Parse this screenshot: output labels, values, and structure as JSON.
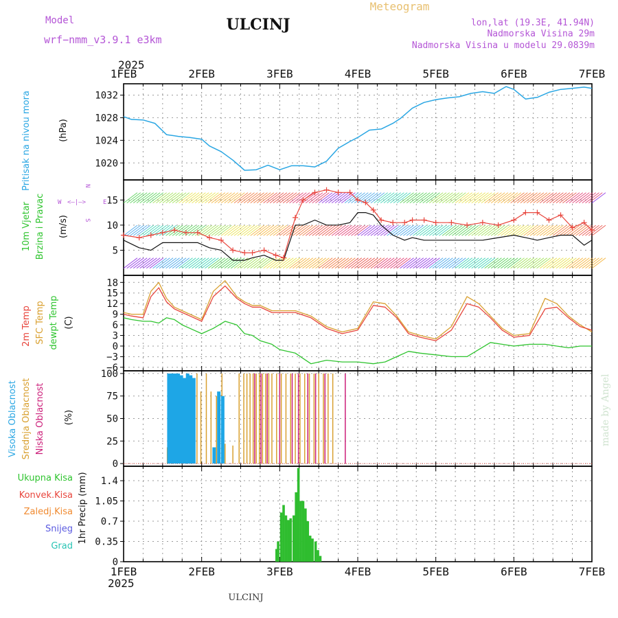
{
  "header": {
    "model_label": "Model",
    "model_name": "wrf−nmm_v3.9.1  e3km",
    "station": "ULCINJ",
    "product": "Meteogram",
    "lonlat": "lon,lat (19.3E, 41.94N)",
    "elevation": "Nadmorska Visina 29m",
    "model_elevation": "Nadmorska Visina u modelu 29.0839m",
    "year_top": "2025",
    "year_bottom": "2025",
    "footer_station": "ULCINJ",
    "credit": "made by Angel"
  },
  "colors": {
    "pressure": "#29a6e3",
    "wind_speed": "#111111",
    "wind_gust": "#e8453c",
    "t2m": "#e8453c",
    "sfc": "#d9a030",
    "dewpt": "#2fc42f",
    "high_cloud": "#1ea6e6",
    "mid_cloud": "#d9a030",
    "low_cloud": "#cc1f7a",
    "precip": "#2fbd2f",
    "model": "#b455d6",
    "meteogram": "#e8c070"
  },
  "x_axis": {
    "days": [
      "1FEB",
      "2FEB",
      "3FEB",
      "4FEB",
      "5FEB",
      "6FEB",
      "7FEB"
    ]
  },
  "chart_data": [
    {
      "type": "line",
      "panel": "pressure",
      "ylabel": "Pritisak na nivou mora",
      "unit": "(hPa)",
      "yticks": [
        1020,
        1024,
        1028,
        1032
      ],
      "ylim": [
        1017,
        1034
      ],
      "x_days": [
        0,
        0.1,
        0.25,
        0.4,
        0.55,
        0.7,
        0.85,
        1.0,
        1.1,
        1.25,
        1.4,
        1.55,
        1.7,
        1.85,
        2.0,
        2.15,
        2.3,
        2.45,
        2.6,
        2.75,
        2.9,
        3.0,
        3.15,
        3.3,
        3.45,
        3.55,
        3.7,
        3.85,
        4.0,
        4.15,
        4.3,
        4.45,
        4.6,
        4.75,
        4.9,
        5.0,
        5.15,
        5.3,
        5.45,
        5.6,
        5.75,
        5.9,
        6.0
      ],
      "values": [
        1028.2,
        1027.7,
        1027.6,
        1027.0,
        1025.0,
        1024.7,
        1024.5,
        1024.2,
        1023.0,
        1022.0,
        1020.5,
        1018.7,
        1018.8,
        1019.6,
        1018.8,
        1019.5,
        1019.5,
        1019.3,
        1020.3,
        1022.6,
        1023.8,
        1024.5,
        1025.8,
        1026.0,
        1027.0,
        1027.9,
        1029.7,
        1030.7,
        1031.2,
        1031.5,
        1031.7,
        1032.3,
        1032.6,
        1032.3,
        1033.5,
        1033.0,
        1031.3,
        1031.6,
        1032.5,
        1033.0,
        1033.2,
        1033.4,
        1033.2
      ]
    },
    {
      "type": "line",
      "panel": "wind",
      "ylabel": "10m Vjetar Brzina i Pravac",
      "unit": "(m/s)",
      "compass": [
        "N",
        "W",
        "E",
        "S"
      ],
      "yticks": [
        5,
        10,
        15
      ],
      "ylim": [
        0,
        19
      ],
      "x_days": [
        0,
        0.2,
        0.35,
        0.5,
        0.65,
        0.8,
        0.95,
        1.1,
        1.25,
        1.4,
        1.55,
        1.65,
        1.8,
        1.95,
        2.05,
        2.2,
        2.3,
        2.45,
        2.6,
        2.75,
        2.9,
        3.0,
        3.1,
        3.2,
        3.3,
        3.45,
        3.6,
        3.7,
        3.85,
        4.0,
        4.2,
        4.4,
        4.6,
        4.8,
        5.0,
        5.15,
        5.3,
        5.45,
        5.6,
        5.75,
        5.9,
        6.0
      ],
      "series": [
        {
          "name": "speed",
          "values": [
            7.0,
            5.5,
            5.0,
            6.5,
            6.5,
            6.5,
            6.5,
            5.5,
            5.0,
            3.0,
            3.0,
            3.5,
            4.0,
            3.0,
            3.0,
            10.0,
            10.0,
            11.0,
            10.0,
            10.0,
            10.5,
            12.5,
            12.5,
            12.0,
            10.0,
            8.0,
            7.0,
            7.5,
            7.0,
            7.0,
            7.0,
            7.0,
            7.0,
            7.5,
            8.0,
            7.5,
            7.0,
            7.5,
            8.0,
            8.0,
            6.0,
            7.0
          ]
        },
        {
          "name": "gust",
          "values": [
            8.0,
            7.5,
            8.0,
            8.5,
            9.0,
            8.5,
            8.5,
            7.5,
            7.0,
            5.0,
            4.5,
            4.5,
            5.0,
            4.0,
            3.5,
            11.5,
            15.0,
            16.5,
            17.0,
            16.5,
            16.5,
            15.0,
            14.5,
            13.0,
            11.0,
            10.5,
            10.5,
            11.0,
            11.0,
            10.5,
            10.5,
            10.0,
            10.5,
            10.0,
            11.0,
            12.5,
            12.5,
            11.0,
            12.0,
            9.5,
            10.5,
            9.0
          ]
        }
      ]
    },
    {
      "type": "line",
      "panel": "temperature",
      "ylabels": [
        "2m Temp",
        "SFC Temp",
        "dewpt Temp"
      ],
      "unit": "(C)",
      "yticks": [
        -6,
        -3,
        0,
        3,
        6,
        9,
        12,
        15,
        18
      ],
      "ylim": [
        -7,
        20
      ],
      "x_days": [
        0,
        0.1,
        0.25,
        0.35,
        0.45,
        0.55,
        0.65,
        0.75,
        0.85,
        1.0,
        1.15,
        1.3,
        1.45,
        1.55,
        1.65,
        1.75,
        1.9,
        2.0,
        2.2,
        2.4,
        2.6,
        2.8,
        3.0,
        3.2,
        3.35,
        3.5,
        3.65,
        3.8,
        4.0,
        4.2,
        4.4,
        4.55,
        4.7,
        4.85,
        5.0,
        5.2,
        5.4,
        5.55,
        5.7,
        5.85,
        6.0
      ],
      "series": [
        {
          "name": "2m Temp",
          "values": [
            9.0,
            8.5,
            8.0,
            14.0,
            16.5,
            12.5,
            10.5,
            9.5,
            8.5,
            7.0,
            14.0,
            17.0,
            13.5,
            12.0,
            11.0,
            11.0,
            9.5,
            9.5,
            9.5,
            8.0,
            5.0,
            3.5,
            4.5,
            11.5,
            11.0,
            8.0,
            3.5,
            2.5,
            1.5,
            4.5,
            12.0,
            11.0,
            8.0,
            4.5,
            2.5,
            3.0,
            10.5,
            11.0,
            8.0,
            5.5,
            4.5
          ]
        },
        {
          "name": "SFC Temp",
          "values": [
            9.5,
            9.0,
            9.0,
            15.5,
            18.0,
            13.5,
            11.0,
            10.0,
            9.0,
            7.5,
            15.5,
            18.5,
            14.0,
            12.5,
            11.5,
            11.5,
            10.0,
            10.0,
            10.0,
            8.5,
            5.5,
            4.0,
            5.0,
            12.5,
            12.0,
            8.5,
            4.0,
            3.0,
            2.0,
            5.5,
            14.0,
            12.0,
            8.5,
            5.0,
            3.0,
            3.5,
            13.5,
            12.0,
            8.5,
            6.0,
            4.0
          ]
        },
        {
          "name": "dewpt Temp",
          "values": [
            8.0,
            7.5,
            7.0,
            7.0,
            6.5,
            8.0,
            7.5,
            6.0,
            5.0,
            3.5,
            5.0,
            7.0,
            6.0,
            3.5,
            3.0,
            1.5,
            0.5,
            -1.0,
            -2.0,
            -5.0,
            -4.0,
            -4.5,
            -4.5,
            -5.0,
            -4.5,
            -3.0,
            -1.5,
            -2.0,
            -2.5,
            -3.0,
            -3.0,
            -1.0,
            1.0,
            0.5,
            0.0,
            0.5,
            0.5,
            0.0,
            -0.5,
            0.0,
            0.0
          ]
        }
      ]
    },
    {
      "type": "bar",
      "panel": "clouds",
      "ylabels": [
        "Visoka Oblacnost",
        "Srednja Oblacnost",
        "Niska Oblacnost"
      ],
      "unit": "(%)",
      "yticks": [
        0,
        25,
        50,
        75,
        100
      ],
      "ylim": [
        0,
        100
      ],
      "series": [
        {
          "name": "Visoka Oblacnost",
          "x_days": [
            0.58,
            0.62,
            0.66,
            0.7,
            0.74,
            0.78,
            0.82,
            0.86,
            0.9,
            1.16,
            1.22,
            1.27
          ],
          "values": [
            100,
            100,
            100,
            100,
            98,
            95,
            100,
            98,
            95,
            18,
            80,
            75
          ]
        },
        {
          "name": "Srednja Oblacnost",
          "x_days": [
            0.56,
            0.94,
            0.99,
            1.06,
            1.12,
            1.19,
            1.26,
            1.3,
            1.4,
            1.48,
            1.54,
            1.58,
            1.62,
            1.66,
            1.7,
            1.74,
            1.78,
            1.82,
            1.86,
            1.9,
            1.96,
            2.02,
            2.08,
            2.14,
            2.2,
            2.26,
            2.32,
            2.38,
            2.44,
            2.5,
            2.56,
            2.62,
            2.68
          ],
          "values": [
            18,
            100,
            80,
            100,
            80,
            75,
            100,
            22,
            20,
            100,
            100,
            100,
            100,
            100,
            100,
            100,
            100,
            100,
            100,
            100,
            100,
            100,
            100,
            100,
            100,
            100,
            100,
            100,
            100,
            100,
            100,
            100,
            100
          ]
        },
        {
          "name": "Niska Oblacnost",
          "x_days": [
            1.68,
            1.76,
            1.84,
            2.0,
            2.16,
            2.24,
            2.36,
            2.46,
            2.58,
            2.84
          ],
          "values": [
            100,
            100,
            100,
            100,
            100,
            100,
            100,
            100,
            100,
            100
          ]
        }
      ]
    },
    {
      "type": "bar",
      "panel": "precipitation",
      "ylabels": [
        "Ukupna Kisa",
        "Konvek.Kisa",
        "Zaledj.Kisa",
        "Snijeg",
        "Grad"
      ],
      "ylabel": "1hr Precip (mm)",
      "yticks": [
        0,
        0.35,
        0.7,
        1.05,
        1.4
      ],
      "ylim": [
        0,
        1.65
      ],
      "x_days": [
        1.96,
        1.98,
        2.02,
        2.05,
        2.08,
        2.11,
        2.14,
        2.18,
        2.21,
        2.24,
        2.27,
        2.3,
        2.33,
        2.36,
        2.39,
        2.42,
        2.46,
        2.49,
        2.52
      ],
      "values": [
        0.22,
        0.35,
        0.85,
        0.98,
        0.8,
        0.72,
        0.75,
        0.8,
        1.2,
        1.62,
        1.05,
        1.05,
        0.92,
        0.7,
        0.45,
        0.4,
        0.35,
        0.2,
        0.1
      ]
    }
  ]
}
